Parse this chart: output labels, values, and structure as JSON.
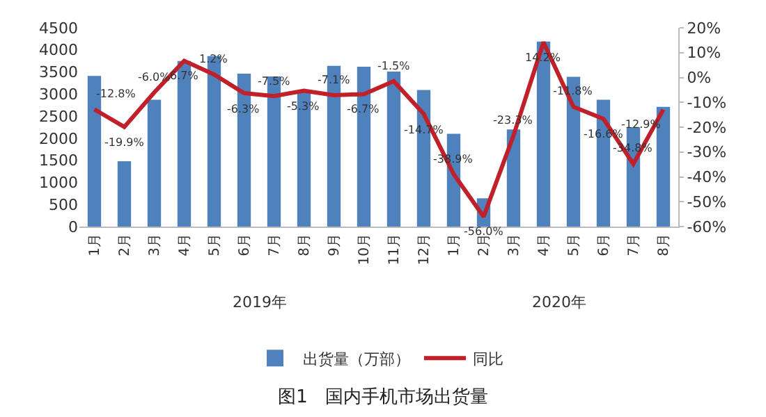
{
  "chart_data": {
    "type": "bar",
    "title": "图1   国内手机市场出货量",
    "categories": [
      "1月",
      "2月",
      "3月",
      "4月",
      "5月",
      "6月",
      "7月",
      "8月",
      "9月",
      "10月",
      "11月",
      "12月",
      "1月",
      "2月",
      "3月",
      "4月",
      "5月",
      "6月",
      "7月",
      "8月"
    ],
    "series": [
      {
        "name": "出货量（万部）",
        "color": "#4f81bd",
        "values": [
          3410,
          1480,
          2870,
          3750,
          3860,
          3460,
          3400,
          3050,
          3640,
          3620,
          3510,
          3090,
          2100,
          640,
          2200,
          4190,
          3390,
          2870,
          2250,
          2710
        ]
      },
      {
        "name": "同比",
        "type": "line",
        "axis": "y2",
        "color": "#c0202a",
        "values": [
          -12.8,
          -19.9,
          -6.0,
          6.7,
          1.2,
          -6.3,
          -7.5,
          -5.3,
          -7.1,
          -6.7,
          -1.5,
          -14.7,
          -38.9,
          -56.0,
          -23.3,
          14.2,
          -11.8,
          -16.6,
          -34.8,
          -12.9
        ],
        "value_labels": [
          "-12.8%",
          "-19.9%",
          "-6.0%",
          "6.7%",
          "1.2%",
          "-6.3%",
          "-7.5%",
          "-5.3%",
          "-7.1%",
          "-6.7%",
          "-1.5%",
          "-14.7%",
          "-38.9%",
          "-56.0%",
          "-23.3%",
          "14.2%",
          "-11.8%",
          "-16.6%",
          "-34.8%",
          "-12.9%"
        ]
      }
    ],
    "ylim": [
      0,
      4500
    ],
    "yticks": [
      0,
      500,
      1000,
      1500,
      2000,
      2500,
      3000,
      3500,
      4000,
      4500
    ],
    "y2lim": [
      -60,
      20
    ],
    "y2ticks": [
      {
        "value": -60,
        "label": "-60%"
      },
      {
        "value": -50,
        "label": "-50%"
      },
      {
        "value": -40,
        "label": "-40%"
      },
      {
        "value": -30,
        "label": "-30%"
      },
      {
        "value": -20,
        "label": "-20%"
      },
      {
        "value": -10,
        "label": "-10%"
      },
      {
        "value": 0,
        "label": "0%"
      },
      {
        "value": 10,
        "label": "10%"
      },
      {
        "value": 20,
        "label": "20%"
      }
    ],
    "annotations": [
      "2019年",
      "2020年"
    ],
    "legend": "bottom",
    "grid": false,
    "marker": "none",
    "line_style": "solid"
  }
}
